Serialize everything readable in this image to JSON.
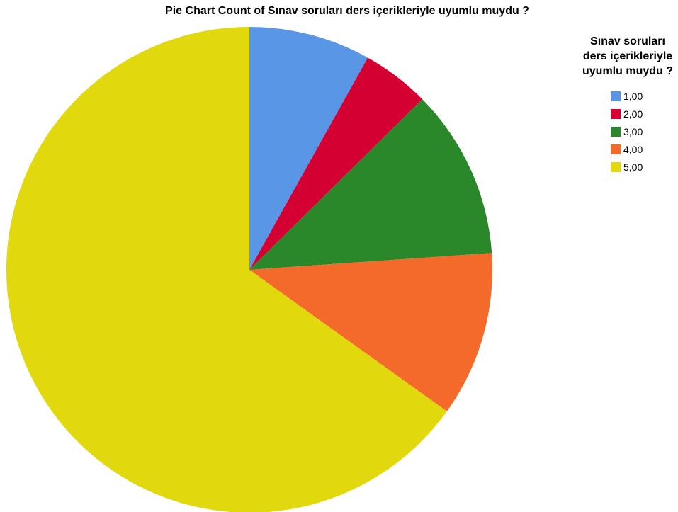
{
  "chart_data": {
    "type": "pie",
    "title": "Pie Chart Count of Sınav soruları ders içerikleriyle uyumlu muydu ?",
    "legend_title": "Sınav soruları ders içerikleriyle uyumlu muydu ?",
    "categories": [
      "1,00",
      "2,00",
      "3,00",
      "4,00",
      "5,00"
    ],
    "values": [
      8.1,
      4.5,
      11.3,
      11.0,
      65.1
    ],
    "colors": [
      "#5a96e6",
      "#d40032",
      "#2a882a",
      "#f46a2a",
      "#e1d80e"
    ],
    "legend": "right"
  }
}
